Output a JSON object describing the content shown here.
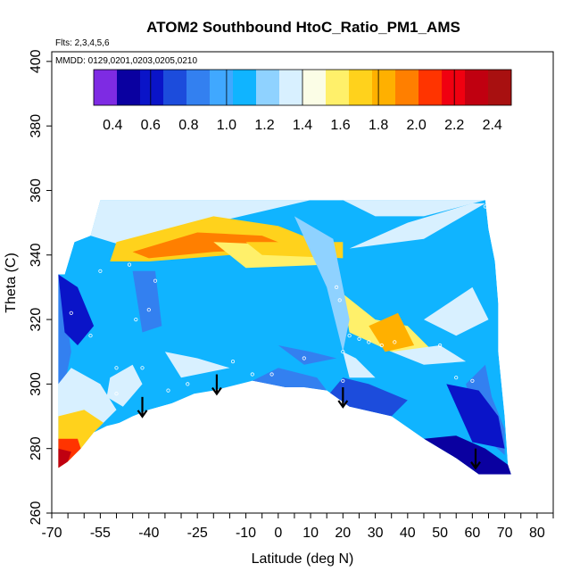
{
  "chart_data": {
    "type": "heatmap",
    "title": "ATOM2 Southbound HtoC_Ratio_PM1_AMS",
    "subtitle_flights": "Flts: 2,3,4,5,6",
    "subtitle_dates": "MMDD: 0129,0201,0203,0205,0210",
    "xlabel": "Latitude (deg N)",
    "ylabel": "Theta (C)",
    "xlim": [
      -70,
      85
    ],
    "ylim": [
      260,
      403
    ],
    "x_ticks": [
      -70,
      -65,
      -60,
      -55,
      -50,
      -45,
      -40,
      -35,
      -30,
      -25,
      -20,
      -15,
      -10,
      -5,
      0,
      5,
      10,
      15,
      20,
      25,
      30,
      35,
      40,
      45,
      50,
      55,
      60,
      65,
      70,
      75,
      80,
      85
    ],
    "x_tick_labels": [
      "-70",
      "-55",
      "-40",
      "-25",
      "-10",
      "0",
      "10",
      "20",
      "30",
      "40",
      "50",
      "60",
      "70",
      "80"
    ],
    "x_tick_label_values": [
      -70,
      -55,
      -40,
      -25,
      -10,
      0,
      10,
      20,
      30,
      40,
      50,
      60,
      70,
      80
    ],
    "y_ticks": [
      260,
      280,
      300,
      320,
      340,
      360,
      380,
      400
    ],
    "y_tick_labels": [
      "260",
      "280",
      "300",
      "320",
      "340",
      "360",
      "380",
      "400"
    ],
    "colorbar": {
      "ticks": [
        "0.4",
        "0.6",
        "0.8",
        "1.0",
        "1.2",
        "1.4",
        "1.6",
        "1.8",
        "2.0",
        "2.2",
        "2.4"
      ],
      "tick_values": [
        0.4,
        0.6,
        0.8,
        1.0,
        1.2,
        1.4,
        1.6,
        1.8,
        2.0,
        2.2,
        2.4
      ],
      "range": [
        0.3,
        2.5
      ],
      "colors": [
        "#7e2be3",
        "#0a00a0",
        "#0a14c8",
        "#1c4cdc",
        "#3380f0",
        "#40a8ff",
        "#10b4ff",
        "#8fd2ff",
        "#d8f0ff",
        "#fbfde6",
        "#fff06a",
        "#ffd21c",
        "#ffb000",
        "#ff7f00",
        "#ff3400",
        "#f00010",
        "#c00010",
        "#a81010"
      ]
    },
    "fill_polygon": [
      [
        -68,
        334
      ],
      [
        -66,
        334
      ],
      [
        -63,
        344
      ],
      [
        -58,
        346
      ],
      [
        -55,
        357
      ],
      [
        -38,
        357
      ],
      [
        -20,
        357
      ],
      [
        0,
        357
      ],
      [
        20,
        357
      ],
      [
        40,
        357
      ],
      [
        50,
        357
      ],
      [
        64,
        357
      ],
      [
        65,
        348
      ],
      [
        67,
        338
      ],
      [
        68,
        325
      ],
      [
        68,
        310
      ],
      [
        70,
        290
      ],
      [
        71,
        275
      ],
      [
        72,
        272
      ],
      [
        62,
        272
      ],
      [
        55,
        277
      ],
      [
        45,
        283
      ],
      [
        35,
        290
      ],
      [
        22,
        293
      ],
      [
        15,
        298
      ],
      [
        8,
        299
      ],
      [
        2,
        299
      ],
      [
        -3,
        300
      ],
      [
        -8,
        301
      ],
      [
        -14,
        299
      ],
      [
        -20,
        298
      ],
      [
        -26,
        297
      ],
      [
        -33,
        294
      ],
      [
        -40,
        292
      ],
      [
        -45,
        290
      ],
      [
        -49,
        288
      ],
      [
        -53,
        287
      ],
      [
        -57,
        285
      ],
      [
        -61,
        280
      ],
      [
        -65,
        276
      ],
      [
        -67,
        274
      ],
      [
        -68,
        274
      ],
      [
        -68,
        290
      ]
    ],
    "regions": [
      {
        "poly": [
          [
            -68,
            334
          ],
          [
            -66,
            334
          ],
          [
            -63,
            344
          ],
          [
            -58,
            346
          ],
          [
            -55,
            357
          ],
          [
            64,
            357
          ],
          [
            65,
            348
          ],
          [
            67,
            338
          ],
          [
            68,
            325
          ],
          [
            68,
            310
          ],
          [
            70,
            290
          ],
          [
            71,
            275
          ],
          [
            72,
            272
          ],
          [
            62,
            272
          ],
          [
            55,
            277
          ],
          [
            45,
            283
          ],
          [
            35,
            290
          ],
          [
            22,
            293
          ],
          [
            15,
            298
          ],
          [
            8,
            299
          ],
          [
            -8,
            301
          ],
          [
            -20,
            298
          ],
          [
            -33,
            294
          ],
          [
            -40,
            292
          ],
          [
            -49,
            288
          ],
          [
            -57,
            285
          ],
          [
            -61,
            280
          ],
          [
            -65,
            276
          ],
          [
            -68,
            274
          ]
        ],
        "value": 1.05
      },
      {
        "poly": [
          [
            -58,
            346
          ],
          [
            -55,
            357
          ],
          [
            10,
            357
          ],
          [
            -20,
            350
          ],
          [
            -45,
            342
          ]
        ],
        "value": 1.3
      },
      {
        "poly": [
          [
            -50,
            344
          ],
          [
            -20,
            352
          ],
          [
            0,
            349
          ],
          [
            15,
            343
          ],
          [
            10,
            338
          ],
          [
            -15,
            340
          ],
          [
            -40,
            338
          ],
          [
            -52,
            338
          ]
        ],
        "value": 1.75
      },
      {
        "poly": [
          [
            -45,
            341
          ],
          [
            -25,
            347
          ],
          [
            -5,
            346
          ],
          [
            5,
            342
          ],
          [
            -20,
            341
          ],
          [
            -40,
            339
          ]
        ],
        "value": 1.9
      },
      {
        "poly": [
          [
            -20,
            344
          ],
          [
            5,
            343
          ],
          [
            20,
            343
          ],
          [
            15,
            337
          ],
          [
            -10,
            336
          ]
        ],
        "value": 1.55
      },
      {
        "poly": [
          [
            -10,
            344
          ],
          [
            20,
            344
          ],
          [
            20,
            339
          ],
          [
            -5,
            340
          ]
        ],
        "value": 1.65
      },
      {
        "poly": [
          [
            22,
            342
          ],
          [
            40,
            350
          ],
          [
            60,
            356
          ],
          [
            64,
            356
          ],
          [
            45,
            345
          ]
        ],
        "value": 1.4
      },
      {
        "poly": [
          [
            20,
            357
          ],
          [
            40,
            357
          ],
          [
            64,
            357
          ],
          [
            45,
            352
          ],
          [
            30,
            352
          ]
        ],
        "value": 1.35
      },
      {
        "poly": [
          [
            20,
            328
          ],
          [
            30,
            320
          ],
          [
            40,
            318
          ],
          [
            48,
            310
          ],
          [
            35,
            310
          ],
          [
            22,
            316
          ]
        ],
        "value": 1.55
      },
      {
        "poly": [
          [
            28,
            318
          ],
          [
            37,
            322
          ],
          [
            42,
            312
          ],
          [
            33,
            310
          ]
        ],
        "value": 1.8
      },
      {
        "poly": [
          [
            45,
            320
          ],
          [
            60,
            330
          ],
          [
            65,
            320
          ],
          [
            55,
            315
          ]
        ],
        "value": 1.3
      },
      {
        "poly": [
          [
            35,
            310
          ],
          [
            50,
            312
          ],
          [
            58,
            307
          ],
          [
            45,
            306
          ]
        ],
        "value": 1.3
      },
      {
        "poly": [
          [
            -68,
            334
          ],
          [
            -66,
            325
          ],
          [
            -64,
            310
          ],
          [
            -66,
            300
          ],
          [
            -68,
            300
          ]
        ],
        "value": 0.8
      },
      {
        "poly": [
          [
            -68,
            334
          ],
          [
            -62,
            330
          ],
          [
            -57,
            318
          ],
          [
            -62,
            312
          ],
          [
            -66,
            316
          ]
        ],
        "value": 0.65
      },
      {
        "poly": [
          [
            -68,
            300
          ],
          [
            -64,
            305
          ],
          [
            -55,
            300
          ],
          [
            -50,
            292
          ],
          [
            -57,
            285
          ],
          [
            -61,
            280
          ],
          [
            -65,
            276
          ],
          [
            -68,
            274
          ]
        ],
        "value": 1.4
      },
      {
        "poly": [
          [
            -68,
            290
          ],
          [
            -60,
            292
          ],
          [
            -54,
            288
          ],
          [
            -57,
            285
          ],
          [
            -61,
            280
          ],
          [
            -65,
            276
          ],
          [
            -68,
            274
          ]
        ],
        "value": 1.75
      },
      {
        "poly": [
          [
            -68,
            283
          ],
          [
            -62,
            283
          ],
          [
            -61,
            280
          ],
          [
            -65,
            276
          ],
          [
            -68,
            274
          ]
        ],
        "value": 2.05
      },
      {
        "poly": [
          [
            -68,
            280
          ],
          [
            -64,
            279
          ],
          [
            -65,
            276
          ],
          [
            -68,
            274
          ]
        ],
        "value": 2.35
      },
      {
        "poly": [
          [
            -52,
            302
          ],
          [
            -45,
            306
          ],
          [
            -42,
            300
          ],
          [
            -48,
            293
          ],
          [
            -53,
            296
          ]
        ],
        "value": 1.35
      },
      {
        "poly": [
          [
            -35,
            310
          ],
          [
            -25,
            308
          ],
          [
            -15,
            305
          ],
          [
            -30,
            302
          ]
        ],
        "value": 1.3
      },
      {
        "poly": [
          [
            -45,
            335
          ],
          [
            -38,
            335
          ],
          [
            -36,
            318
          ],
          [
            -42,
            316
          ]
        ],
        "value": 0.85
      },
      {
        "poly": [
          [
            0,
            312
          ],
          [
            10,
            310
          ],
          [
            18,
            308
          ],
          [
            8,
            306
          ]
        ],
        "value": 0.85
      },
      {
        "poly": [
          [
            20,
            310
          ],
          [
            24,
            308
          ],
          [
            30,
            302
          ],
          [
            22,
            302
          ]
        ],
        "value": 1.3
      },
      {
        "poly": [
          [
            58,
            300
          ],
          [
            64,
            306
          ],
          [
            66,
            296
          ],
          [
            70,
            286
          ],
          [
            70,
            278
          ],
          [
            62,
            285
          ]
        ],
        "value": 0.85
      },
      {
        "poly": [
          [
            45,
            283
          ],
          [
            55,
            277
          ],
          [
            62,
            272
          ],
          [
            72,
            272
          ],
          [
            71,
            275
          ],
          [
            64,
            280
          ],
          [
            55,
            284
          ]
        ],
        "value": 0.45
      },
      {
        "poly": [
          [
            52,
            300
          ],
          [
            62,
            298
          ],
          [
            68,
            290
          ],
          [
            70,
            280
          ],
          [
            60,
            282
          ]
        ],
        "value": 0.6
      },
      {
        "poly": [
          [
            15,
            296
          ],
          [
            22,
            293
          ],
          [
            35,
            290
          ],
          [
            40,
            295
          ],
          [
            28,
            300
          ],
          [
            20,
            302
          ]
        ],
        "value": 0.75
      },
      {
        "poly": [
          [
            -8,
            301
          ],
          [
            2,
            299
          ],
          [
            15,
            298
          ],
          [
            12,
            302
          ],
          [
            0,
            305
          ]
        ],
        "value": 0.8
      },
      {
        "poly": [
          [
            5,
            352
          ],
          [
            15,
            330
          ],
          [
            20,
            310
          ],
          [
            22,
            320
          ],
          [
            17,
            345
          ]
        ],
        "value": 1.2
      }
    ],
    "sample_points": [
      [
        -64,
        322
      ],
      [
        -58,
        315
      ],
      [
        -55,
        335
      ],
      [
        -50,
        305
      ],
      [
        -46,
        337
      ],
      [
        -44,
        320
      ],
      [
        -40,
        323
      ],
      [
        -38,
        332
      ],
      [
        -34,
        298
      ],
      [
        -28,
        300
      ],
      [
        -14,
        307
      ],
      [
        -8,
        303
      ],
      [
        -2,
        303
      ],
      [
        8,
        308
      ],
      [
        18,
        330
      ],
      [
        19,
        326
      ],
      [
        20,
        310
      ],
      [
        20,
        301
      ],
      [
        22,
        315
      ],
      [
        25,
        314
      ],
      [
        28,
        313
      ],
      [
        32,
        312
      ],
      [
        36,
        313
      ],
      [
        50,
        312
      ],
      [
        55,
        302
      ],
      [
        60,
        301
      ],
      [
        64,
        355
      ],
      [
        -50,
        297
      ],
      [
        -42,
        305
      ]
    ],
    "arrows": [
      {
        "lat": -42,
        "theta": 296
      },
      {
        "lat": -19,
        "theta": 303
      },
      {
        "lat": 20,
        "theta": 299
      },
      {
        "lat": 61,
        "theta": 280
      }
    ]
  }
}
